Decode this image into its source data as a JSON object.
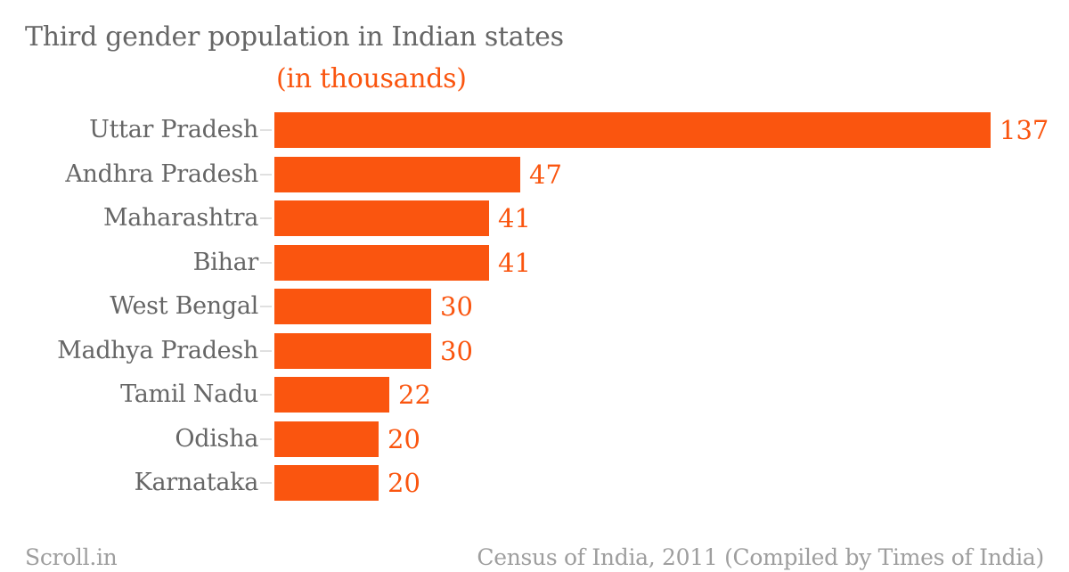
{
  "chart_data": {
    "type": "bar",
    "orientation": "horizontal",
    "title": "Third gender population in Indian states",
    "subtitle": "(in thousands)",
    "categories": [
      "Uttar Pradesh",
      "Andhra Pradesh",
      "Maharashtra",
      "Bihar",
      "West Bengal",
      "Madhya Pradesh",
      "Tamil Nadu",
      "Odisha",
      "Karnataka"
    ],
    "values": [
      137,
      47,
      41,
      41,
      30,
      30,
      22,
      20,
      20
    ],
    "value_labels": [
      "137",
      "47",
      "41",
      "41",
      "30",
      "30",
      "22",
      "20",
      "20"
    ],
    "xlim": [
      0,
      137
    ],
    "grid": false,
    "legend": false,
    "value_label_position": "outside-end",
    "colors": {
      "bar": "#FA550F",
      "value_text": "#FA550F",
      "subtitle_text": "#FA550F",
      "title_text": "#666666",
      "category_text": "#666666",
      "axis_tick": "#E0E0E0",
      "footer_text": "#9E9E9E",
      "background": "#FFFFFF"
    }
  },
  "footer": {
    "left": "Scroll.in",
    "right": "Census of India, 2011 (Compiled by Times of India)"
  }
}
